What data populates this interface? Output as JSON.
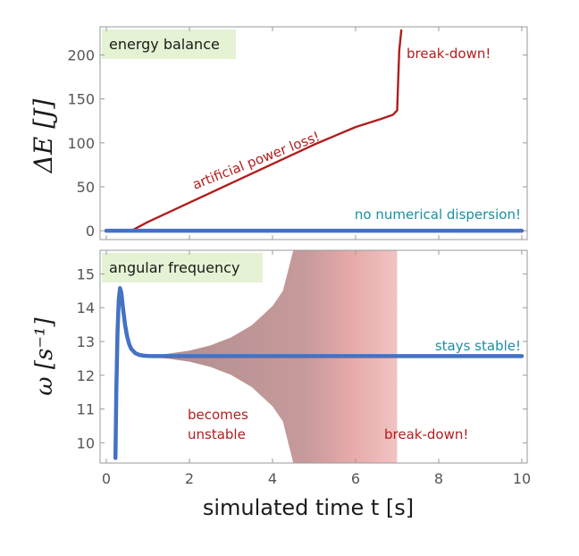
{
  "chart_data": [
    {
      "type": "line",
      "panel_label": "energy balance",
      "ylabel": "ΔE  [J]",
      "xlim": [
        0,
        10
      ],
      "ylim": [
        -10,
        232
      ],
      "yticks": [
        0,
        50,
        100,
        150,
        200
      ],
      "series": [
        {
          "color": "#b01e1e",
          "x": [
            0.0,
            0.6,
            1.0,
            2.0,
            3.0,
            4.0,
            5.0,
            6.0,
            6.6,
            6.9,
            7.0,
            7.02,
            7.05,
            7.1
          ],
          "y": [
            0,
            0,
            10,
            32,
            54,
            76,
            98,
            118,
            127,
            132,
            137,
            165,
            205,
            228
          ]
        },
        {
          "color": "#4472c4",
          "x": [
            0.0,
            10.0
          ],
          "y": [
            0,
            0
          ]
        }
      ],
      "annotations": [
        {
          "text": "break-down!",
          "color": "#b01e1e"
        },
        {
          "text": "artificial power loss!",
          "color": "#b01e1e"
        },
        {
          "text": "no numerical dispersion!",
          "color": "#1a8fa3"
        }
      ]
    },
    {
      "type": "line",
      "panel_label": "angular frequency",
      "ylabel": "ω  [s⁻¹]",
      "xlabel": "simulated time t  [s]",
      "xlim": [
        0,
        10
      ],
      "ylim": [
        9.4,
        15.7
      ],
      "xticks": [
        0,
        2,
        4,
        6,
        8,
        10
      ],
      "yticks": [
        10,
        11,
        12,
        13,
        14,
        15
      ],
      "stable_value": 12.566,
      "unstable_envelope": {
        "x": [
          1.0,
          1.5,
          2.0,
          2.5,
          3.0,
          3.5,
          4.0,
          4.25,
          4.5
        ],
        "upper": [
          12.58,
          12.64,
          12.73,
          12.88,
          13.12,
          13.48,
          14.05,
          14.5,
          15.7
        ],
        "lower": [
          12.55,
          12.49,
          12.4,
          12.25,
          12.01,
          11.65,
          11.08,
          10.63,
          9.4
        ],
        "full_band_until": 7.0,
        "color": "#c07070"
      },
      "series": [
        {
          "color": "#4472c4",
          "x": [
            0.22,
            0.24,
            0.27,
            0.3,
            0.33,
            0.36,
            0.4,
            0.45,
            0.5,
            0.55,
            0.6,
            0.7,
            0.8,
            0.9,
            1.0,
            1.2,
            10.0
          ],
          "y": [
            9.55,
            11.5,
            13.3,
            14.25,
            14.58,
            14.45,
            14.0,
            13.5,
            13.15,
            12.92,
            12.78,
            12.65,
            12.6,
            12.58,
            12.57,
            12.566,
            12.566
          ]
        }
      ],
      "annotations": [
        {
          "text": "stays stable!",
          "color": "#1a8fa3"
        },
        {
          "text": "becomes",
          "color": "#b01e1e"
        },
        {
          "text": "unstable",
          "color": "#b01e1e"
        },
        {
          "text": "break-down!",
          "color": "#b01e1e"
        }
      ]
    }
  ]
}
